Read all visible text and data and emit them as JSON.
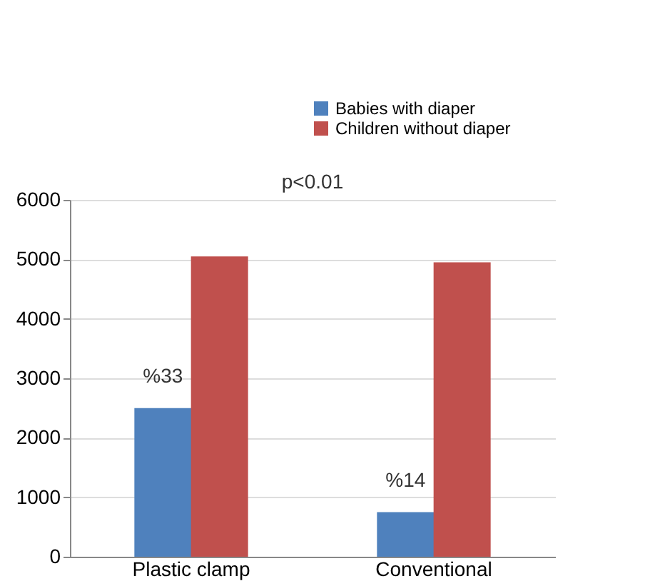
{
  "chart_data": {
    "type": "bar",
    "categories": [
      "Plastic clamp",
      "Conventional"
    ],
    "series": [
      {
        "name": "Babies with diaper",
        "color": "#4f81bd",
        "values": [
          2500,
          750
        ]
      },
      {
        "name": "Children without diaper",
        "color": "#c0504d",
        "values": [
          5050,
          4950
        ]
      }
    ],
    "ylim": [
      0,
      6000
    ],
    "yticks": [
      0,
      1000,
      2000,
      3000,
      4000,
      5000,
      6000
    ],
    "grid": "y",
    "legend": "top right",
    "annotations": [
      {
        "text": "%33",
        "x": "Plastic clamp",
        "y": 2500
      },
      {
        "text": "%14",
        "x": "Conventional",
        "y": 750
      },
      "p<0.01"
    ]
  }
}
